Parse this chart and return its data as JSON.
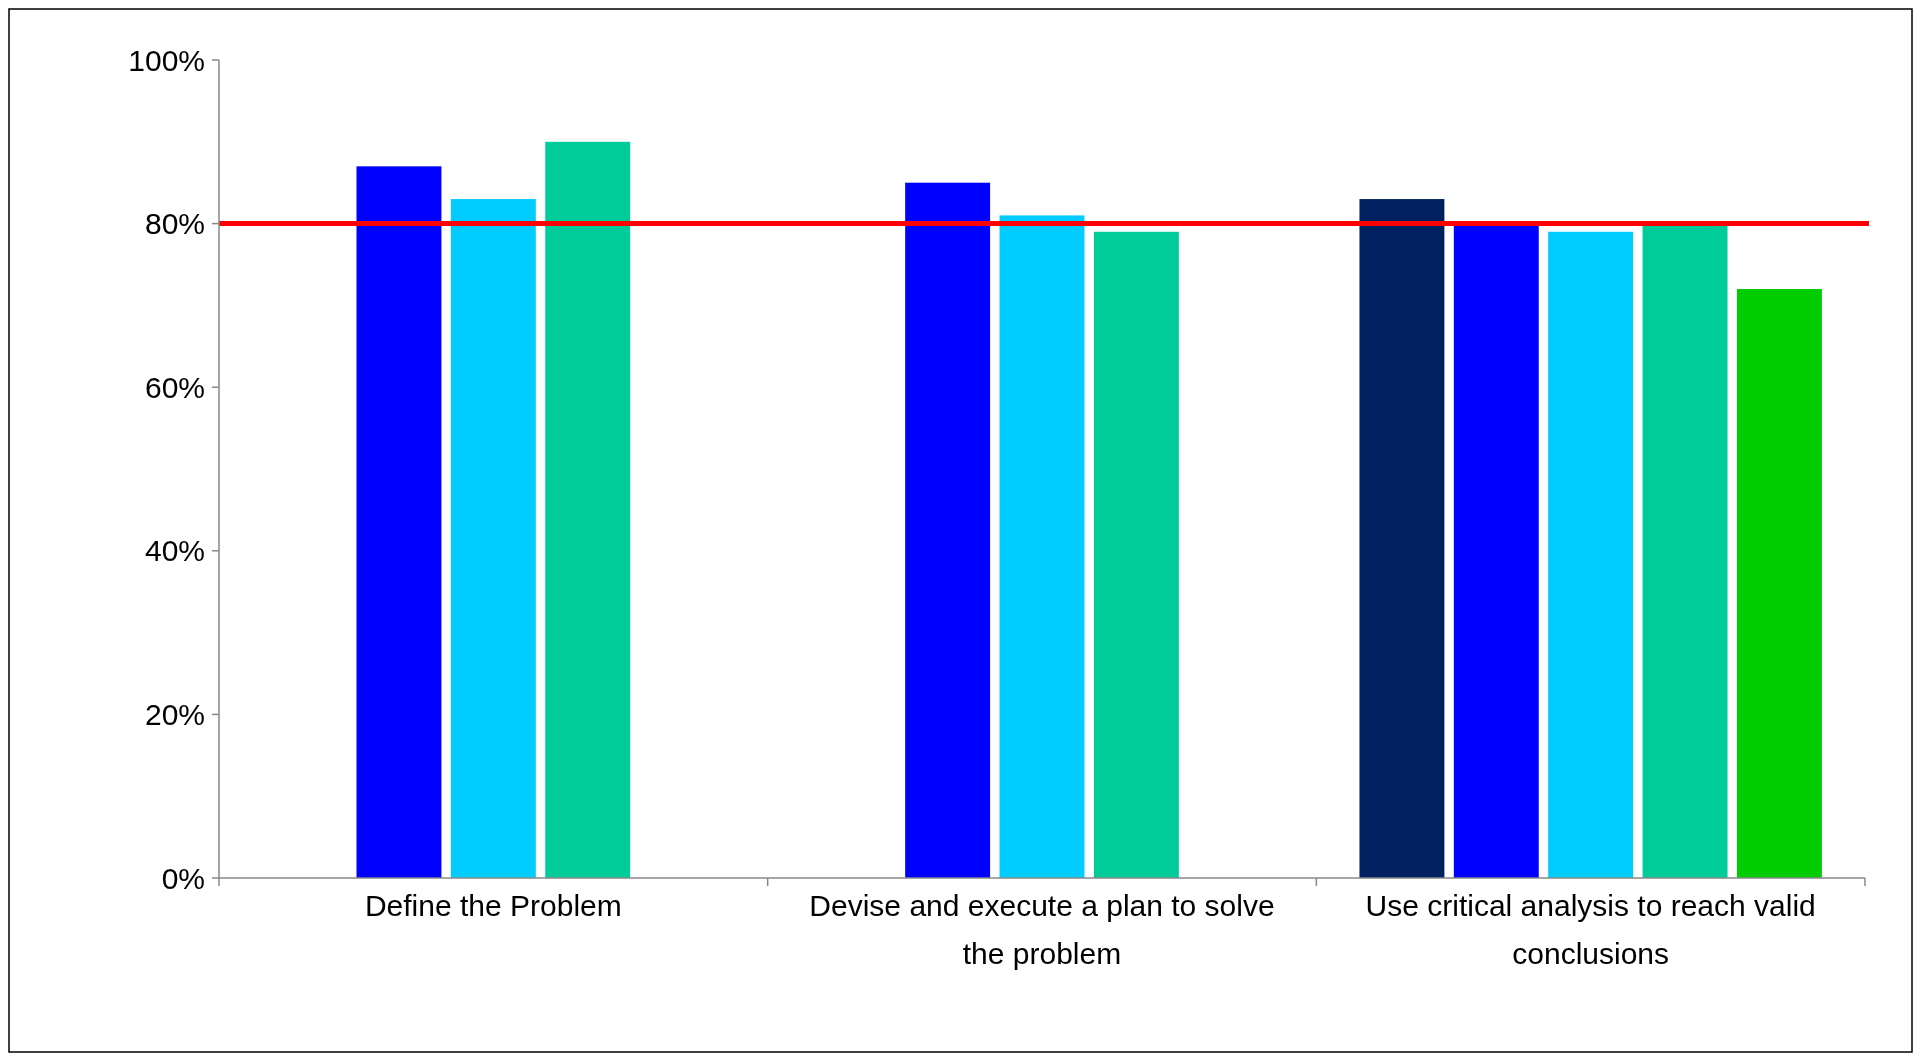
{
  "chart_data": {
    "type": "bar",
    "categories": [
      "Define the Problem",
      "Devise and execute a plan to solve the problem",
      "Use critical analysis to reach valid conclusions"
    ],
    "series": [
      {
        "color": "#002060",
        "values": [
          null,
          null,
          83
        ]
      },
      {
        "color": "#0000ff",
        "values": [
          87,
          85,
          80
        ]
      },
      {
        "color": "#00ccff",
        "values": [
          83,
          81,
          79
        ]
      },
      {
        "color": "#00cc99",
        "values": [
          90,
          79,
          80
        ]
      },
      {
        "color": "#00cc00",
        "values": [
          null,
          null,
          72
        ]
      }
    ],
    "ylim": [
      0,
      100
    ],
    "yticks": [
      {
        "value": 0,
        "label": "0%"
      },
      {
        "value": 20,
        "label": "20%"
      },
      {
        "value": 40,
        "label": "40%"
      },
      {
        "value": 60,
        "label": "60%"
      },
      {
        "value": 80,
        "label": "80%"
      },
      {
        "value": 100,
        "label": "100%"
      }
    ],
    "ref_lines": [
      {
        "axis": "y",
        "value": 80,
        "color": "#ff0000",
        "line_style": "solid"
      }
    ],
    "grid": false
  }
}
